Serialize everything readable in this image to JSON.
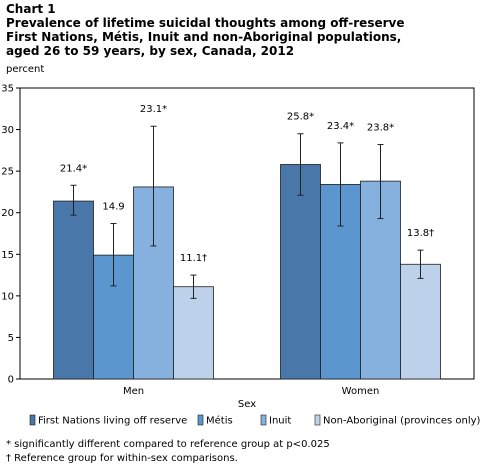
{
  "header": {
    "label": "Chart 1",
    "title_lines": [
      "Prevalence of lifetime suicidal thoughts among off-reserve",
      "First Nations, Métis, Inuit and non-Aboriginal  populations,",
      "aged 26 to 59 years, by sex, Canada, 2012"
    ]
  },
  "chart_data": {
    "type": "bar",
    "ylabel": "percent",
    "xlabel": "Sex",
    "ylim": [
      0,
      35
    ],
    "yticks": [
      0,
      5,
      10,
      15,
      20,
      25,
      30,
      35
    ],
    "categories": [
      "Men",
      "Women"
    ],
    "series": [
      {
        "name": "First Nations living off reserve",
        "color": "#4a77a9",
        "values": [
          21.4,
          25.8
        ],
        "labels": [
          "21.4*",
          "25.8*"
        ],
        "err_low": [
          19.7,
          22.1
        ],
        "err_high": [
          23.3,
          29.5
        ]
      },
      {
        "name": "Métis",
        "color": "#5b96cf",
        "values": [
          14.9,
          23.4
        ],
        "labels": [
          "14.9",
          "23.4*"
        ],
        "err_low": [
          11.2,
          18.4
        ],
        "err_high": [
          18.7,
          28.4
        ]
      },
      {
        "name": "Inuit",
        "color": "#86b0de",
        "values": [
          23.1,
          23.8
        ],
        "labels": [
          "23.1*",
          "23.8*"
        ],
        "err_low": [
          16.0,
          19.3
        ],
        "err_high": [
          30.4,
          28.2
        ]
      },
      {
        "name": "Non-Aboriginal (provinces only)",
        "color": "#bdd1ea",
        "values": [
          11.1,
          13.8
        ],
        "labels": [
          "11.1†",
          "13.8†"
        ],
        "err_low": [
          9.7,
          12.1
        ],
        "err_high": [
          12.5,
          15.5
        ]
      }
    ],
    "legend_position": "bottom",
    "grid": false
  },
  "footnotes": [
    "* significantly different compared to reference group at p<0.025",
    "† Reference group for within-sex comparisons."
  ]
}
